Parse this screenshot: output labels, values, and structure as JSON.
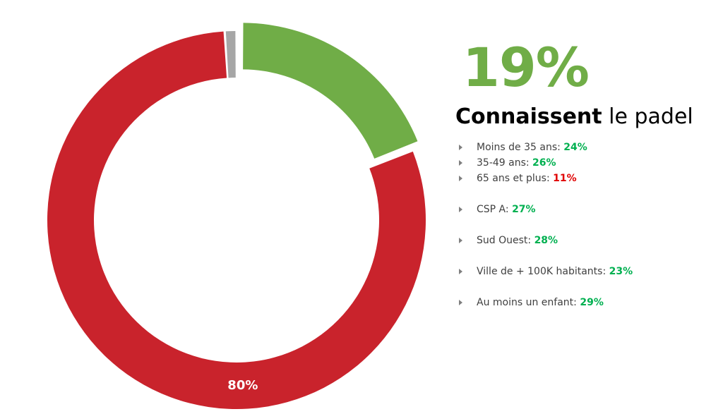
{
  "headline": {
    "value": "19%",
    "subtitle_strong": "Connaissent",
    "subtitle_rest": " le padel"
  },
  "bullets": [
    {
      "label": "Moins de 35 ans: ",
      "value": "24%",
      "value_color": "#00b050"
    },
    {
      "label": "35-49 ans: ",
      "value": "26%",
      "value_color": "#00b050"
    },
    {
      "label": "65 ans et plus: ",
      "value": "11%",
      "value_color": "#e00000"
    },
    {
      "label": "CSP A: ",
      "value": "27%",
      "value_color": "#00b050"
    },
    {
      "label": "Sud Ouest: ",
      "value": "28%",
      "value_color": "#00b050"
    },
    {
      "label": "Ville de + 100K habitants: ",
      "value": "23%",
      "value_color": "#00b050"
    },
    {
      "label": "Au moins un enfant: ",
      "value": "29%",
      "value_color": "#00b050"
    }
  ],
  "chart_data": {
    "type": "pie",
    "variant": "donut",
    "slices": [
      {
        "value": 19,
        "color": "#70ad47",
        "label": "",
        "exploded": true
      },
      {
        "value": 80,
        "color": "#c9232c",
        "label": "80%"
      },
      {
        "value": 1,
        "color": "#a6a6a6",
        "label": ""
      }
    ],
    "start": "12 o'clock",
    "direction": "clockwise",
    "legend": "none"
  }
}
